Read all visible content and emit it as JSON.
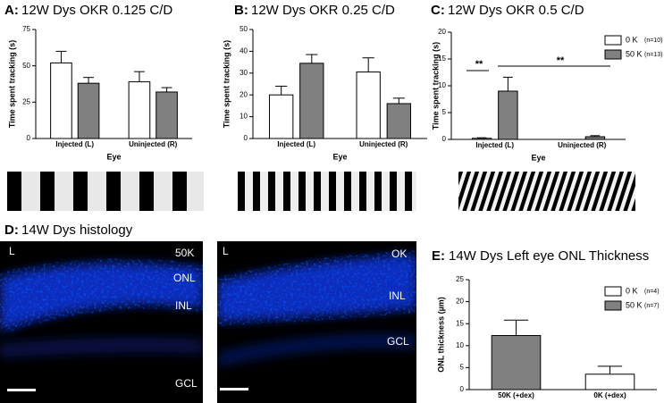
{
  "chart_data": [
    {
      "type": "bar",
      "panel": "A:",
      "title": "12W Dys OKR 0.125 C/D",
      "y_label": "Time spent tracking (s)",
      "x_label": "Eye",
      "categories": [
        "Injected (L)",
        "Uninjected (R)"
      ],
      "series": [
        {
          "name": "0 K",
          "color": "#ffffff",
          "values": [
            52,
            39
          ],
          "errors": [
            8,
            7
          ]
        },
        {
          "name": "50 K",
          "color": "#808080",
          "values": [
            38,
            32
          ],
          "errors": [
            4,
            3
          ]
        }
      ],
      "ylim": [
        0,
        75
      ],
      "yticks": [
        0,
        25,
        50,
        75
      ]
    },
    {
      "type": "bar",
      "panel": "B:",
      "title": "12W Dys OKR 0.25 C/D",
      "y_label": "Time spent tracking (s)",
      "x_label": "Eye",
      "categories": [
        "Injected (L)",
        "Uninjected (R)"
      ],
      "series": [
        {
          "name": "0 K",
          "color": "#ffffff",
          "values": [
            20,
            30.5
          ],
          "errors": [
            4,
            6.5
          ]
        },
        {
          "name": "50 K",
          "color": "#808080",
          "values": [
            34.5,
            16
          ],
          "errors": [
            4,
            2.5
          ]
        }
      ],
      "ylim": [
        0,
        50
      ],
      "yticks": [
        0,
        10,
        20,
        30,
        40,
        50
      ]
    },
    {
      "type": "bar",
      "panel": "C:",
      "title": "12W Dys OKR 0.5 C/D",
      "y_label": "Time spent tracking (s)",
      "x_label": "Eye",
      "categories": [
        "Injected (L)",
        "Uninjected (R)"
      ],
      "series": [
        {
          "name": "0 K",
          "n": "(n=10)",
          "color": "#ffffff",
          "values": [
            0.2,
            0
          ],
          "errors": [
            0.1,
            0
          ]
        },
        {
          "name": "50 K",
          "n": "(n=13)",
          "color": "#808080",
          "values": [
            9,
            0.5
          ],
          "errors": [
            2.6,
            0.2
          ]
        }
      ],
      "annotations": [
        "**",
        "**"
      ],
      "ylim": [
        0,
        20
      ],
      "yticks": [
        0,
        5,
        10,
        15,
        20
      ],
      "legend": "upper right"
    },
    {
      "type": "bar",
      "panel": "E:",
      "title": "14W Dys Left eye ONL Thickness",
      "y_label": "ONL thickness (µm)",
      "categories": [
        "50K (+dex)",
        "0K (+dex)"
      ],
      "series": [
        {
          "name": "0 K",
          "n": "(n=4)",
          "color": "#ffffff",
          "values": [
            null,
            3.5
          ],
          "errors": [
            null,
            1.8
          ]
        },
        {
          "name": "50 K",
          "n": "(n=7)",
          "color": "#808080",
          "values": [
            12.3,
            null
          ],
          "errors": [
            3.5,
            null
          ]
        }
      ],
      "ylim": [
        0,
        25
      ],
      "yticks": [
        0,
        5,
        10,
        15,
        20,
        25
      ],
      "legend": "upper right"
    }
  ],
  "histology": {
    "panel": "D:",
    "title": "14W Dys histology",
    "images": [
      {
        "labels": [
          "L",
          "50K",
          "ONL",
          "INL",
          "GCL"
        ]
      },
      {
        "labels": [
          "L",
          "OK",
          "INL",
          "GCL"
        ]
      }
    ]
  }
}
